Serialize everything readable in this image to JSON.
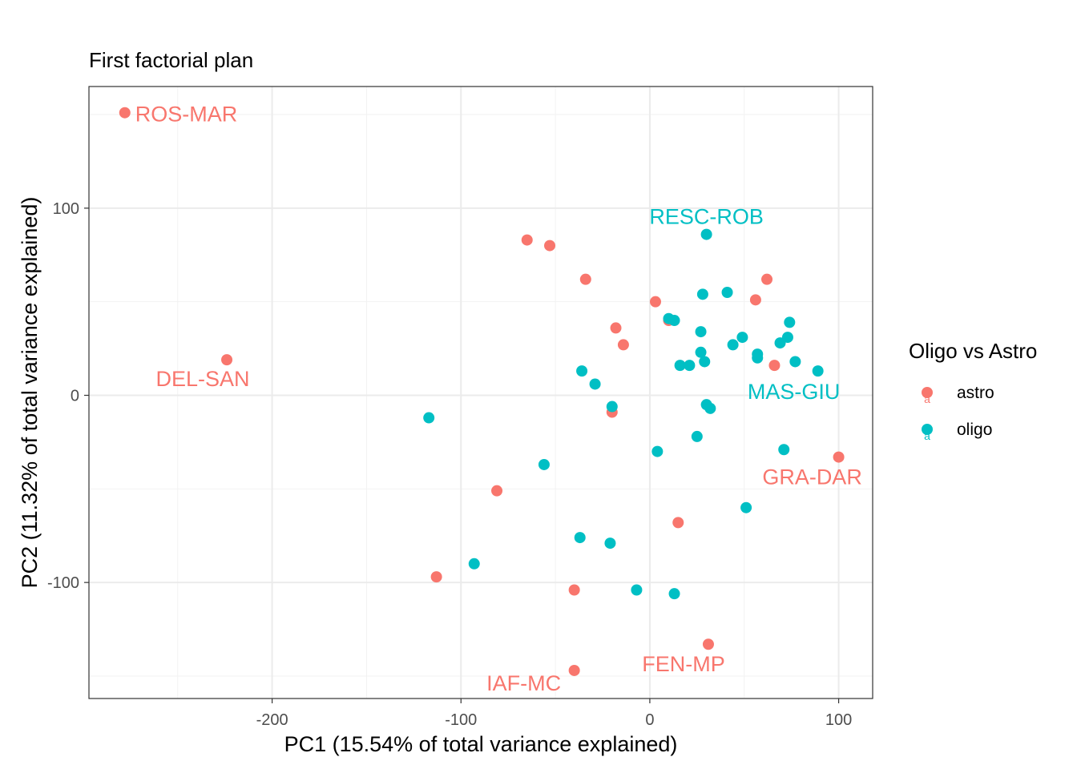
{
  "chart_data": {
    "type": "scatter",
    "title": "First factorial plan",
    "xlabel": "PC1 (15.54% of total variance explained)",
    "ylabel": "PC2 (11.32% of total variance explained)",
    "xlim": [
      -297,
      118
    ],
    "ylim": [
      -162,
      165
    ],
    "x_major_ticks": [
      -200,
      -100,
      0,
      100
    ],
    "x_minor_ticks": [
      -250,
      -150,
      -50,
      50
    ],
    "y_major_ticks": [
      -100,
      0,
      100
    ],
    "y_minor_ticks": [
      -150,
      -50,
      50,
      150
    ],
    "x_tick_labels": [
      "-200",
      "-100",
      "0",
      "100"
    ],
    "y_tick_labels": [
      "-100",
      "0",
      "100"
    ],
    "grid": true,
    "legend": {
      "title": "Oligo vs Astro",
      "placement": "right",
      "entries": [
        "astro",
        "oligo"
      ]
    },
    "colors": {
      "astro": "#F8766D",
      "oligo": "#00BFC4"
    },
    "series": [
      {
        "name": "astro",
        "points": [
          {
            "x": -278,
            "y": 151,
            "label": "ROS-MAR"
          },
          {
            "x": -224,
            "y": 19,
            "label": "DEL-SAN"
          },
          {
            "x": -65,
            "y": 83
          },
          {
            "x": -53,
            "y": 80
          },
          {
            "x": -34,
            "y": 62
          },
          {
            "x": 3,
            "y": 50
          },
          {
            "x": 10,
            "y": 40
          },
          {
            "x": -18,
            "y": 36
          },
          {
            "x": -14,
            "y": 27
          },
          {
            "x": 62,
            "y": 62
          },
          {
            "x": 56,
            "y": 51
          },
          {
            "x": 66,
            "y": 16
          },
          {
            "x": -20,
            "y": -9
          },
          {
            "x": 100,
            "y": -33,
            "label": "GRA-DAR"
          },
          {
            "x": -81,
            "y": -51
          },
          {
            "x": 15,
            "y": -68
          },
          {
            "x": -113,
            "y": -97
          },
          {
            "x": -40,
            "y": -104
          },
          {
            "x": 31,
            "y": -133,
            "label": "FEN-MP"
          },
          {
            "x": -40,
            "y": -147,
            "label": "IAF-MC"
          }
        ]
      },
      {
        "name": "oligo",
        "points": [
          {
            "x": 30,
            "y": 86,
            "label": "RESC-ROB"
          },
          {
            "x": 28,
            "y": 54
          },
          {
            "x": 41,
            "y": 55
          },
          {
            "x": 10,
            "y": 41
          },
          {
            "x": 13,
            "y": 40
          },
          {
            "x": 27,
            "y": 34
          },
          {
            "x": 49,
            "y": 31
          },
          {
            "x": 74,
            "y": 39
          },
          {
            "x": 73,
            "y": 31
          },
          {
            "x": 69,
            "y": 28
          },
          {
            "x": 44,
            "y": 27
          },
          {
            "x": 57,
            "y": 22
          },
          {
            "x": 57,
            "y": 20
          },
          {
            "x": 27,
            "y": 23
          },
          {
            "x": 16,
            "y": 16
          },
          {
            "x": 21,
            "y": 16
          },
          {
            "x": 29,
            "y": 18
          },
          {
            "x": 77,
            "y": 18
          },
          {
            "x": 89,
            "y": 13,
            "label": "MAS-GIU"
          },
          {
            "x": -36,
            "y": 13
          },
          {
            "x": -29,
            "y": 6
          },
          {
            "x": -20,
            "y": -6
          },
          {
            "x": 30,
            "y": -5
          },
          {
            "x": 32,
            "y": -7
          },
          {
            "x": -117,
            "y": -12
          },
          {
            "x": 25,
            "y": -22
          },
          {
            "x": 4,
            "y": -30
          },
          {
            "x": 71,
            "y": -29
          },
          {
            "x": -56,
            "y": -37
          },
          {
            "x": 51,
            "y": -60
          },
          {
            "x": -37,
            "y": -76
          },
          {
            "x": -21,
            "y": -79
          },
          {
            "x": -93,
            "y": -90
          },
          {
            "x": -7,
            "y": -104
          },
          {
            "x": 13,
            "y": -106
          }
        ]
      }
    ]
  }
}
